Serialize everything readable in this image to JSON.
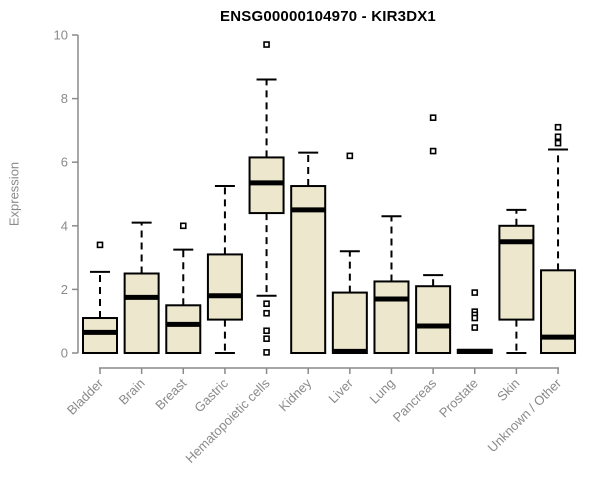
{
  "title": "ENSG00000104970 - KIR3DX1",
  "chart_data": {
    "type": "boxplot",
    "title": "ENSG00000104970 - KIR3DX1",
    "xlabel": "",
    "ylabel": "Expression",
    "ylim": [
      0,
      10
    ],
    "yticks": [
      0,
      2,
      4,
      6,
      8,
      10
    ],
    "grid": false,
    "legend": "none",
    "box_fill_color": "#EDE8CD",
    "box_border_color": "#000000",
    "axis_color": "#8a8a8a",
    "categories": [
      "Bladder",
      "Brain",
      "Breast",
      "Gastric",
      "Hematopoietic cells",
      "Kidney",
      "Liver",
      "Lung",
      "Pancreas",
      "Prostate",
      "Skin",
      "Unknown / Other"
    ],
    "series": [
      {
        "name": "Bladder",
        "low": 0,
        "q1": 0,
        "median": 0.65,
        "q3": 1.1,
        "high": 2.55,
        "outliers": [
          3.4
        ]
      },
      {
        "name": "Brain",
        "low": 0,
        "q1": 0,
        "median": 1.75,
        "q3": 2.5,
        "high": 4.1,
        "outliers": []
      },
      {
        "name": "Breast",
        "low": 0,
        "q1": 0,
        "median": 0.9,
        "q3": 1.5,
        "high": 3.25,
        "outliers": [
          4.0
        ]
      },
      {
        "name": "Gastric",
        "low": 0,
        "q1": 1.05,
        "median": 1.8,
        "q3": 3.1,
        "high": 5.25,
        "outliers": []
      },
      {
        "name": "Hematopoietic cells",
        "low": 1.8,
        "q1": 4.4,
        "median": 5.35,
        "q3": 6.15,
        "high": 8.6,
        "outliers": [
          9.7,
          1.55,
          1.25,
          0.7,
          0.45,
          0.02
        ]
      },
      {
        "name": "Kidney",
        "low": 0,
        "q1": 0,
        "median": 4.5,
        "q3": 5.25,
        "high": 6.3,
        "outliers": []
      },
      {
        "name": "Liver",
        "low": 0,
        "q1": 0,
        "median": 0.05,
        "q3": 1.9,
        "high": 3.2,
        "outliers": [
          6.2
        ]
      },
      {
        "name": "Lung",
        "low": 0,
        "q1": 0,
        "median": 1.7,
        "q3": 2.25,
        "high": 4.3,
        "outliers": []
      },
      {
        "name": "Pancreas",
        "low": 0,
        "q1": 0,
        "median": 0.85,
        "q3": 2.1,
        "high": 2.45,
        "outliers": [
          7.4,
          6.35
        ]
      },
      {
        "name": "Prostate",
        "low": 0,
        "q1": 0,
        "median": 0.05,
        "q3": 0.1,
        "high": 0.1,
        "outliers": [
          1.9,
          1.3,
          1.2,
          1.1,
          0.8
        ]
      },
      {
        "name": "Skin",
        "low": 0,
        "q1": 1.05,
        "median": 3.5,
        "q3": 4.0,
        "high": 4.5,
        "outliers": []
      },
      {
        "name": "Unknown / Other",
        "low": 0,
        "q1": 0,
        "median": 0.5,
        "q3": 2.6,
        "high": 6.4,
        "outliers": [
          7.1,
          6.8,
          6.6
        ]
      }
    ]
  }
}
